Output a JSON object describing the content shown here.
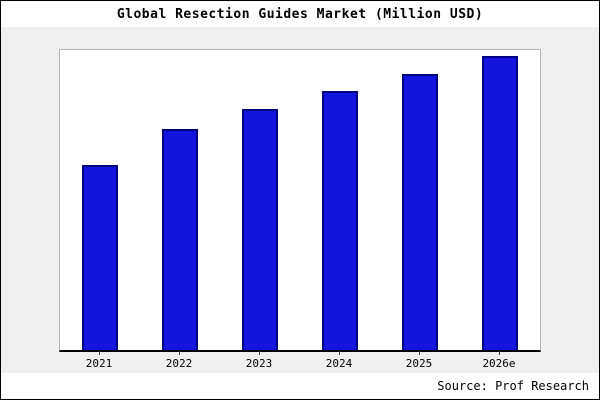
{
  "title": "Global Resection Guides Market (Million USD)",
  "source_note": "Source: Prof Research",
  "colors": {
    "bar_fill": "#1414dd",
    "bar_border": "#000080",
    "panel_bg": "#f0eff0",
    "plot_bg": "#ffffff"
  },
  "chart_data": {
    "type": "bar",
    "categories": [
      "2021",
      "2022",
      "2023",
      "2024",
      "2025",
      "2026e"
    ],
    "values": [
      63,
      75,
      82,
      88,
      94,
      100
    ],
    "title": "Global Resection Guides Market (Million USD)",
    "xlabel": "",
    "ylabel": "",
    "ylim": [
      0,
      102
    ],
    "grid": false,
    "legend": false,
    "source": "Source: Prof Research"
  }
}
